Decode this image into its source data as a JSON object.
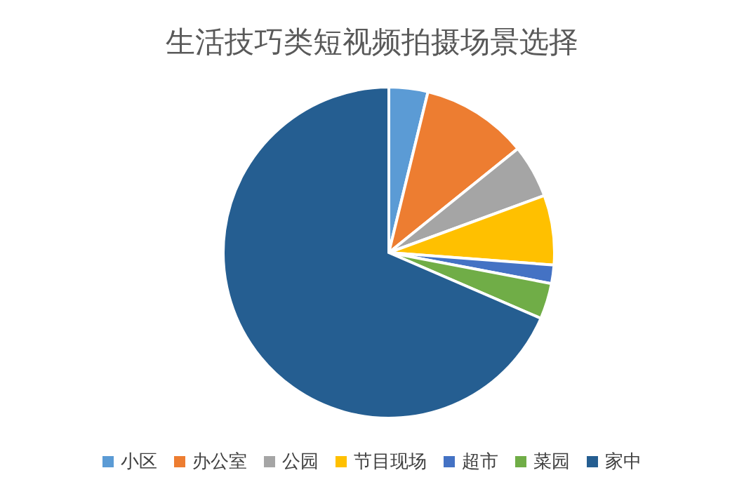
{
  "chart_data": {
    "type": "pie",
    "title": "生活技巧类短视频拍摄场景选择",
    "categories": [
      "小区",
      "办公室",
      "公园",
      "节目现场",
      "超市",
      "菜园",
      "家中"
    ],
    "values": [
      3.8,
      10.4,
      5.2,
      6.8,
      1.8,
      3.5,
      68.5
    ],
    "colors": [
      "#5b9bd5",
      "#ed7d31",
      "#a5a5a5",
      "#ffc000",
      "#4472c4",
      "#70ad47",
      "#255e91"
    ],
    "legend": "bottom"
  }
}
